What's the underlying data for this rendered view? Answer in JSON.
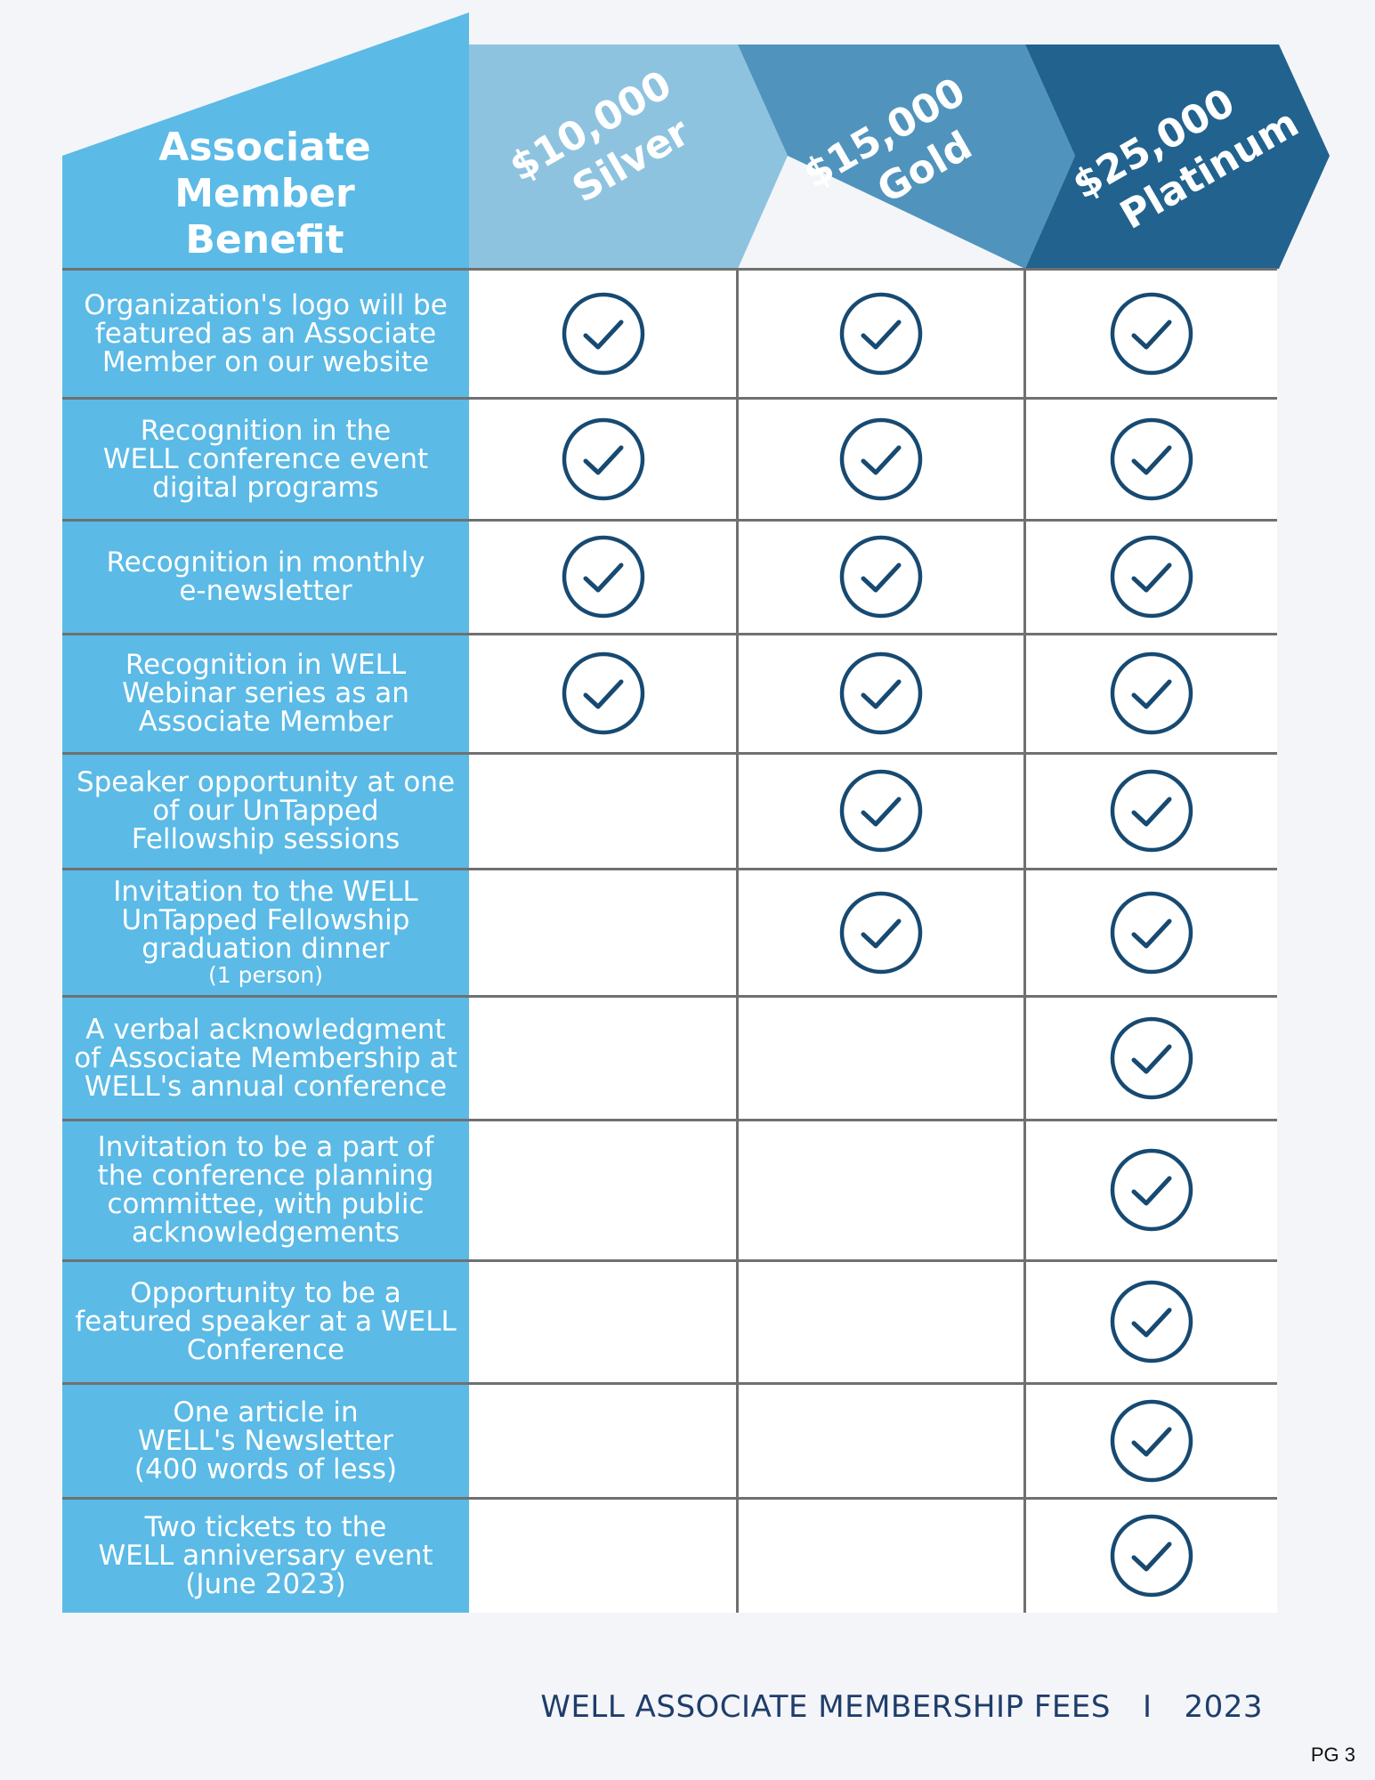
{
  "header": {
    "benefit_title_lines": [
      "Associate",
      "Member",
      "Benefit"
    ],
    "tiers": [
      {
        "price": "$10,000",
        "name": "Silver",
        "color": "#8ec3e0"
      },
      {
        "price": "$15,000",
        "name": "Gold",
        "color": "#5094bd"
      },
      {
        "price": "$25,000",
        "name": "Platinum",
        "color": "#21628f"
      }
    ],
    "title_color": "#5bbae6"
  },
  "benefits": [
    {
      "lines": [
        "Organization's logo will be",
        "featured as an Associate",
        "Member on our website"
      ],
      "checks": [
        true,
        true,
        true
      ]
    },
    {
      "lines": [
        "Recognition in the",
        "WELL conference event",
        "digital programs"
      ],
      "checks": [
        true,
        true,
        true
      ]
    },
    {
      "lines": [
        "Recognition in monthly",
        "e-newsletter"
      ],
      "checks": [
        true,
        true,
        true
      ]
    },
    {
      "lines": [
        "Recognition in WELL",
        "Webinar series as an",
        "Associate Member"
      ],
      "checks": [
        true,
        true,
        true
      ]
    },
    {
      "lines": [
        "Speaker opportunity at one",
        "of our UnTapped",
        "Fellowship sessions"
      ],
      "checks": [
        false,
        true,
        true
      ]
    },
    {
      "lines": [
        "Invitation to the WELL",
        "UnTapped Fellowship",
        "graduation dinner"
      ],
      "note": "(1 person)",
      "checks": [
        false,
        true,
        true
      ]
    },
    {
      "lines": [
        "A verbal acknowledgment",
        "of Associate Membership at",
        "WELL's annual conference"
      ],
      "checks": [
        false,
        false,
        true
      ]
    },
    {
      "lines": [
        "Invitation to be a part of",
        "the conference planning",
        "committee, with public",
        "acknowledgements"
      ],
      "checks": [
        false,
        false,
        true
      ]
    },
    {
      "lines": [
        "Opportunity to be a",
        "featured speaker at a WELL",
        "Conference"
      ],
      "checks": [
        false,
        false,
        true
      ]
    },
    {
      "lines": [
        "One article in",
        "WELL's Newsletter",
        "(400 words of less)"
      ],
      "checks": [
        false,
        false,
        true
      ]
    },
    {
      "lines": [
        "Two tickets to the",
        "WELL anniversary event",
        "(June 2023)"
      ],
      "checks": [
        false,
        false,
        true
      ]
    }
  ],
  "check_icon": "check-circle-icon",
  "check_color": "#174a72",
  "footer": {
    "title": "WELL ASSOCIATE MEMBERSHIP FEES",
    "separator": "I",
    "year": "2023",
    "page": "PG 3"
  }
}
